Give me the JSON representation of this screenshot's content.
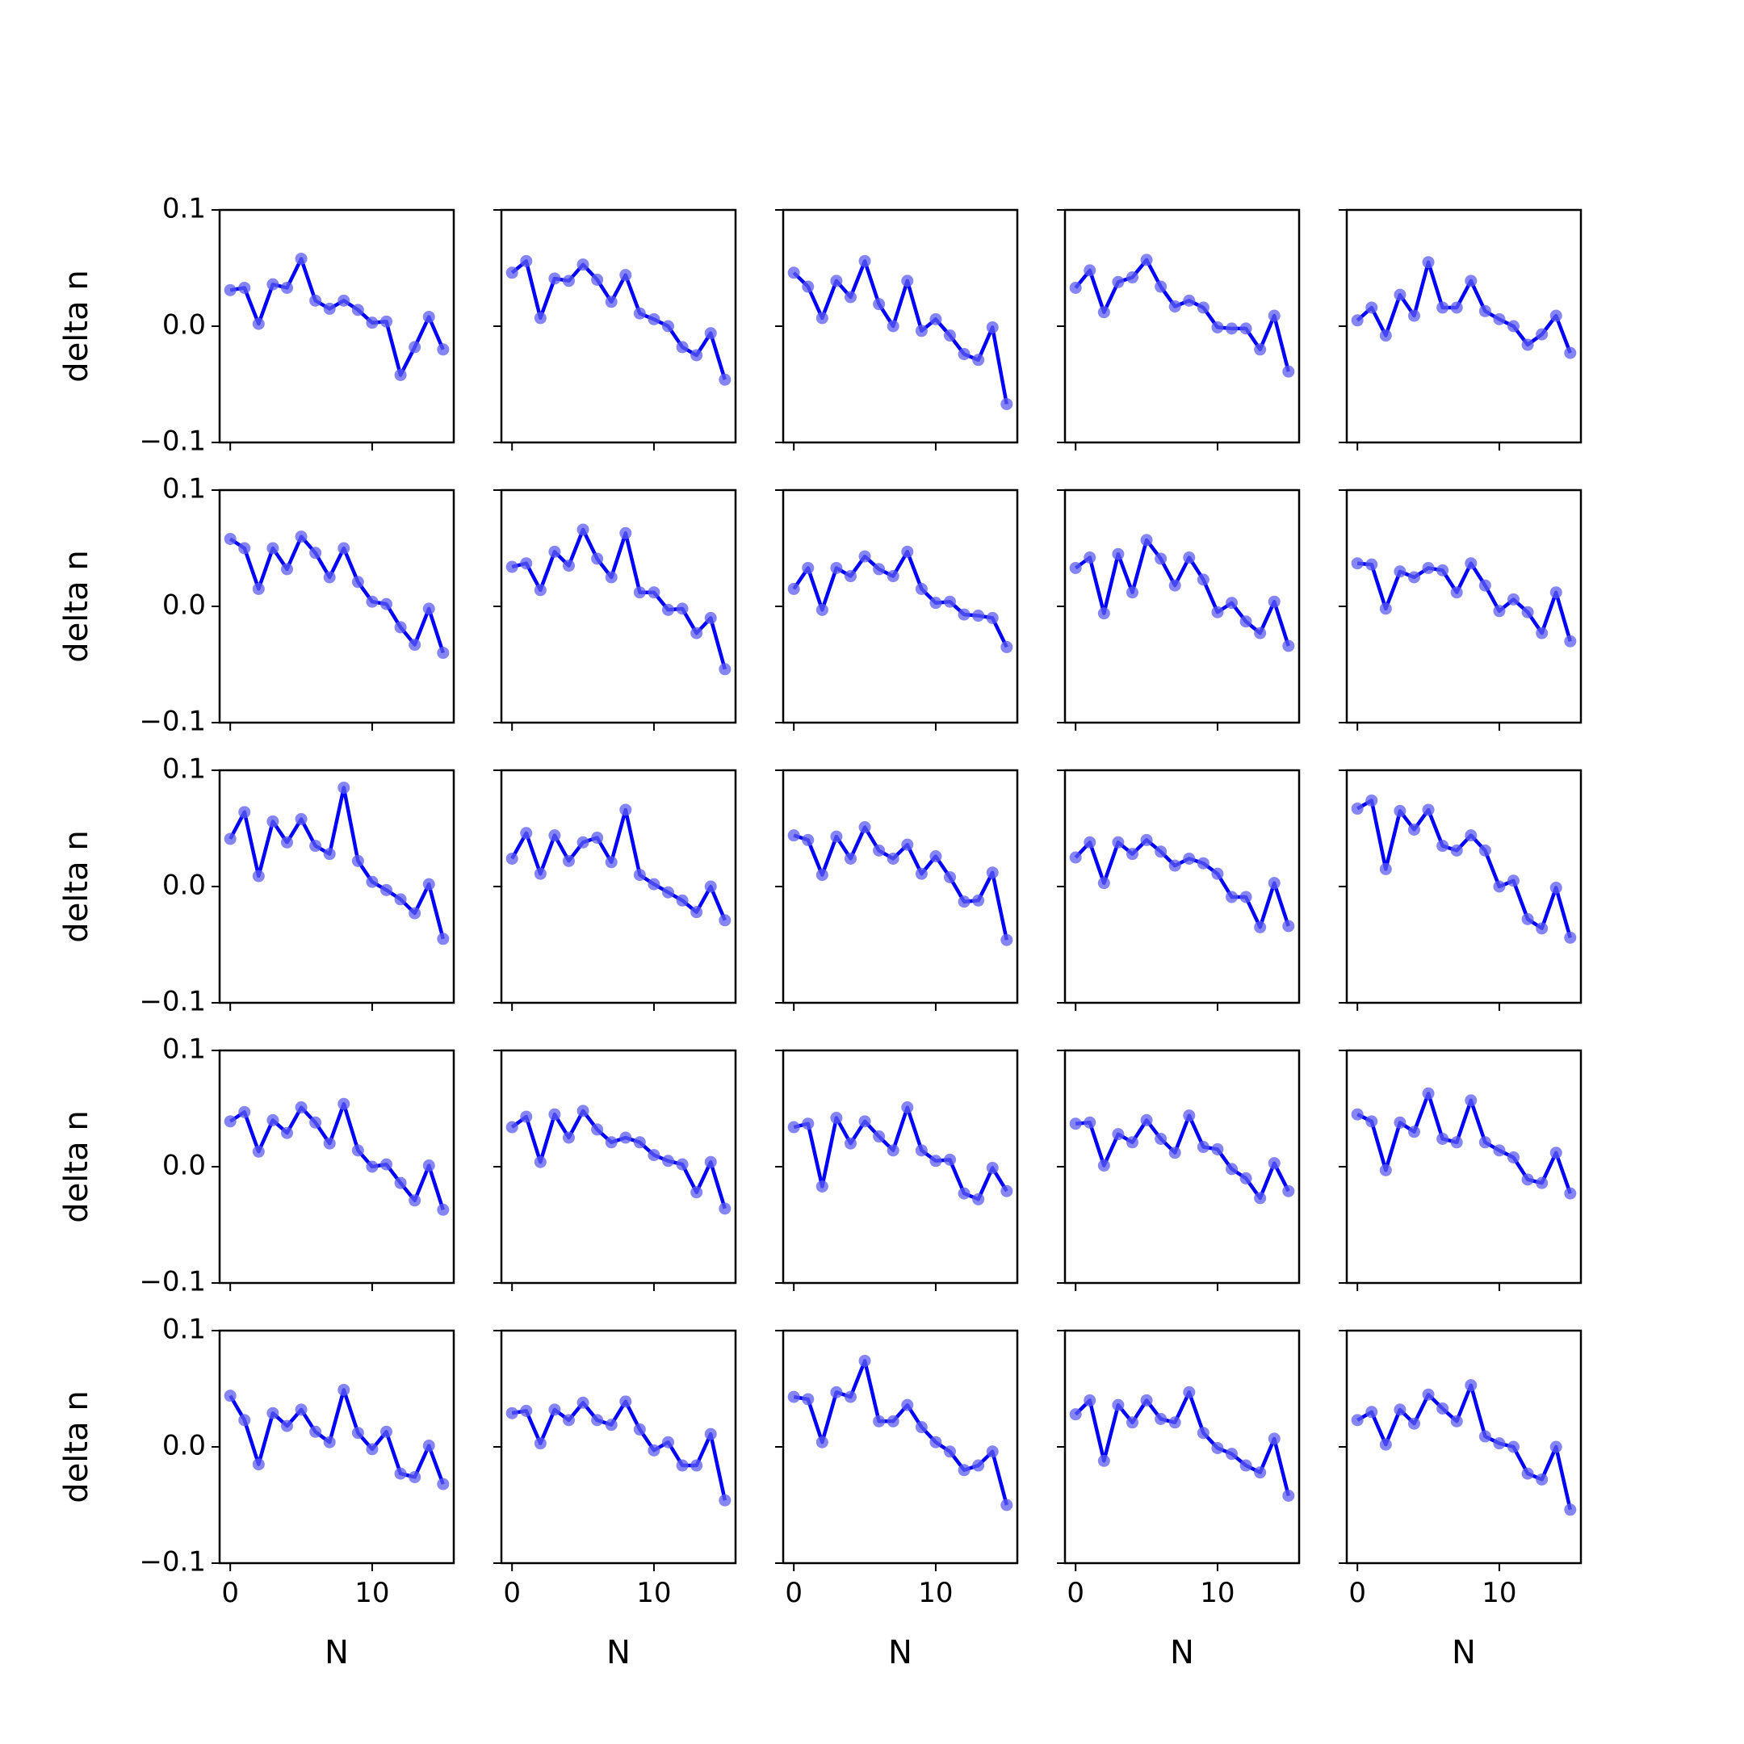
{
  "chart_data": {
    "type": "line",
    "layout": {
      "rows": 5,
      "cols": 5
    },
    "xlabel": "N",
    "ylabel": "delta n",
    "xlim": [
      -0.75,
      15.75
    ],
    "ylim": [
      -0.1,
      0.1
    ],
    "x": [
      0,
      1,
      2,
      3,
      4,
      5,
      6,
      7,
      8,
      9,
      10,
      11,
      12,
      13,
      14,
      15
    ],
    "x_ticks": [
      0,
      10
    ],
    "x_tick_labels": [
      "0",
      "10"
    ],
    "y_ticks": [
      0.1,
      0.0,
      -0.1
    ],
    "y_tick_labels": [
      "0.1",
      "0.0",
      "−0.1"
    ],
    "line_color": "#0000ff",
    "marker_color": "#5c5cf0",
    "grid": false,
    "legend": "none",
    "panels": [
      [
        0.031,
        0.033,
        0.002,
        0.036,
        0.033,
        0.058,
        0.022,
        0.015,
        0.022,
        0.014,
        0.003,
        0.004,
        -0.042,
        -0.018,
        0.008,
        -0.02
      ],
      [
        0.046,
        0.056,
        0.007,
        0.041,
        0.039,
        0.053,
        0.04,
        0.021,
        0.044,
        0.011,
        0.006,
        0.0,
        -0.018,
        -0.025,
        -0.006,
        -0.046
      ],
      [
        0.046,
        0.034,
        0.007,
        0.039,
        0.025,
        0.056,
        0.019,
        0.0,
        0.039,
        -0.004,
        0.006,
        -0.008,
        -0.024,
        -0.029,
        -0.001,
        -0.067
      ],
      [
        0.033,
        0.048,
        0.012,
        0.038,
        0.042,
        0.057,
        0.034,
        0.017,
        0.022,
        0.016,
        -0.001,
        -0.002,
        -0.002,
        -0.02,
        0.009,
        -0.039
      ],
      [
        0.005,
        0.016,
        -0.008,
        0.027,
        0.009,
        0.055,
        0.016,
        0.016,
        0.039,
        0.013,
        0.006,
        0.0,
        -0.016,
        -0.007,
        0.009,
        -0.023
      ],
      [
        0.058,
        0.05,
        0.015,
        0.05,
        0.032,
        0.06,
        0.046,
        0.025,
        0.05,
        0.021,
        0.004,
        0.002,
        -0.018,
        -0.033,
        -0.002,
        -0.04
      ],
      [
        0.034,
        0.037,
        0.014,
        0.047,
        0.035,
        0.066,
        0.041,
        0.025,
        0.063,
        0.012,
        0.012,
        -0.003,
        -0.002,
        -0.023,
        -0.01,
        -0.054
      ],
      [
        0.015,
        0.033,
        -0.003,
        0.033,
        0.026,
        0.043,
        0.032,
        0.026,
        0.047,
        0.015,
        0.003,
        0.004,
        -0.007,
        -0.008,
        -0.01,
        -0.035
      ],
      [
        0.033,
        0.042,
        -0.006,
        0.045,
        0.012,
        0.057,
        0.041,
        0.018,
        0.042,
        0.023,
        -0.005,
        0.003,
        -0.013,
        -0.023,
        0.004,
        -0.034
      ],
      [
        0.037,
        0.036,
        -0.002,
        0.03,
        0.025,
        0.033,
        0.031,
        0.012,
        0.037,
        0.018,
        -0.004,
        0.006,
        -0.005,
        -0.023,
        0.012,
        -0.03
      ],
      [
        0.041,
        0.064,
        0.009,
        0.056,
        0.038,
        0.058,
        0.035,
        0.028,
        0.085,
        0.022,
        0.004,
        -0.003,
        -0.011,
        -0.023,
        0.002,
        -0.045
      ],
      [
        0.024,
        0.046,
        0.011,
        0.044,
        0.022,
        0.038,
        0.042,
        0.021,
        0.066,
        0.01,
        0.002,
        -0.005,
        -0.012,
        -0.022,
        0.0,
        -0.029
      ],
      [
        0.044,
        0.04,
        0.01,
        0.043,
        0.024,
        0.051,
        0.031,
        0.024,
        0.036,
        0.011,
        0.026,
        0.008,
        -0.013,
        -0.012,
        0.012,
        -0.046
      ],
      [
        0.025,
        0.038,
        0.003,
        0.038,
        0.028,
        0.04,
        0.03,
        0.018,
        0.024,
        0.02,
        0.011,
        -0.009,
        -0.009,
        -0.035,
        0.003,
        -0.034
      ],
      [
        0.067,
        0.074,
        0.015,
        0.065,
        0.049,
        0.066,
        0.035,
        0.031,
        0.044,
        0.031,
        0.0,
        0.005,
        -0.028,
        -0.036,
        -0.001,
        -0.044
      ],
      [
        0.039,
        0.047,
        0.013,
        0.04,
        0.029,
        0.051,
        0.038,
        0.02,
        0.054,
        0.014,
        0.0,
        0.002,
        -0.014,
        -0.029,
        0.001,
        -0.037
      ],
      [
        0.034,
        0.043,
        0.004,
        0.045,
        0.025,
        0.048,
        0.032,
        0.021,
        0.025,
        0.021,
        0.01,
        0.005,
        0.002,
        -0.022,
        0.004,
        -0.036
      ],
      [
        0.034,
        0.037,
        -0.017,
        0.042,
        0.02,
        0.039,
        0.026,
        0.014,
        0.051,
        0.014,
        0.005,
        0.006,
        -0.023,
        -0.028,
        -0.001,
        -0.021
      ],
      [
        0.037,
        0.038,
        0.001,
        0.028,
        0.021,
        0.04,
        0.024,
        0.012,
        0.044,
        0.017,
        0.015,
        -0.002,
        -0.01,
        -0.027,
        0.003,
        -0.021
      ],
      [
        0.045,
        0.039,
        -0.003,
        0.038,
        0.03,
        0.063,
        0.024,
        0.021,
        0.057,
        0.021,
        0.014,
        0.008,
        -0.011,
        -0.014,
        0.012,
        -0.023
      ],
      [
        0.044,
        0.023,
        -0.015,
        0.029,
        0.018,
        0.032,
        0.013,
        0.004,
        0.049,
        0.012,
        -0.002,
        0.013,
        -0.023,
        -0.026,
        0.001,
        -0.032
      ],
      [
        0.029,
        0.031,
        0.003,
        0.032,
        0.023,
        0.038,
        0.023,
        0.019,
        0.039,
        0.015,
        -0.003,
        0.004,
        -0.016,
        -0.016,
        0.011,
        -0.046
      ],
      [
        0.043,
        0.041,
        0.004,
        0.047,
        0.043,
        0.074,
        0.022,
        0.022,
        0.036,
        0.017,
        0.004,
        -0.004,
        -0.02,
        -0.016,
        -0.004,
        -0.05
      ],
      [
        0.028,
        0.04,
        -0.012,
        0.036,
        0.021,
        0.04,
        0.024,
        0.021,
        0.047,
        0.012,
        -0.001,
        -0.006,
        -0.016,
        -0.022,
        0.007,
        -0.042
      ],
      [
        0.023,
        0.03,
        0.002,
        0.032,
        0.02,
        0.045,
        0.033,
        0.022,
        0.053,
        0.009,
        0.003,
        0.0,
        -0.023,
        -0.028,
        0.0,
        -0.054
      ]
    ]
  }
}
